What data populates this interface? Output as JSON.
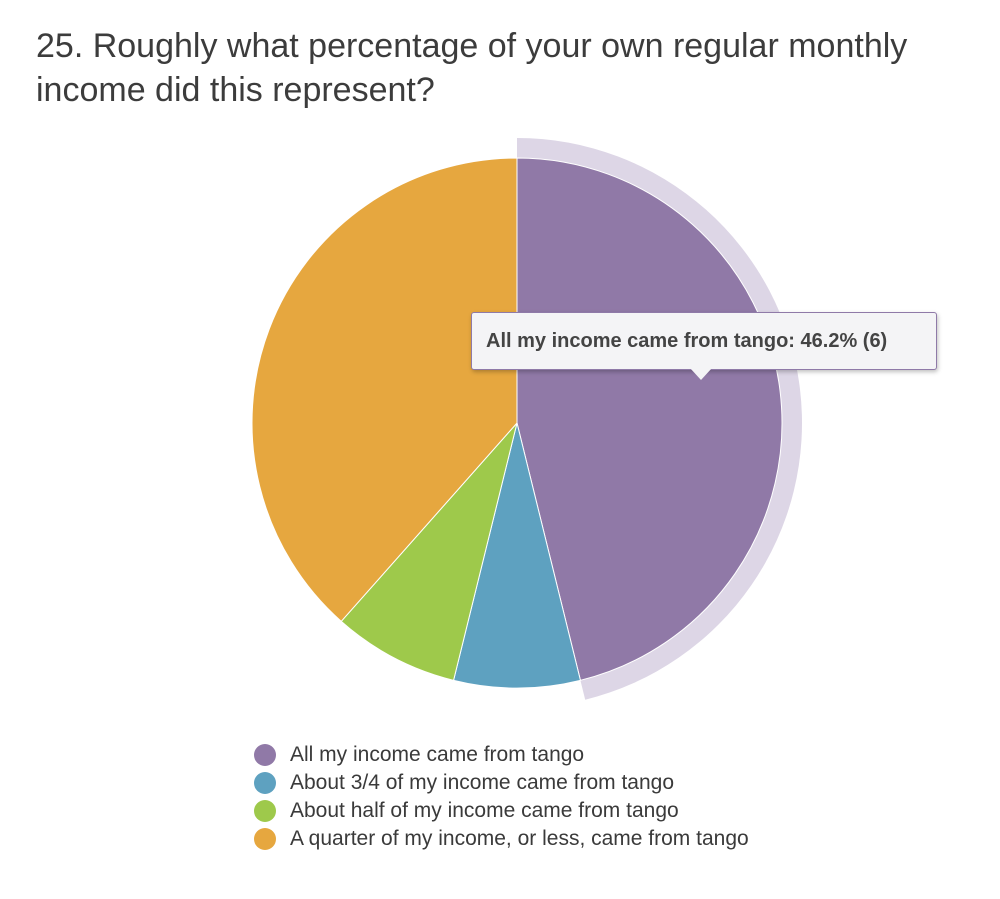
{
  "chart_data": {
    "type": "pie",
    "title": "25. Roughly what percentage of your own regular monthly income did this represent?",
    "categories": [
      "All my income came from tango",
      "About 3/4 of my income came from tango",
      "About half of my income came from tango",
      "A quarter of my income, or less, came from tango"
    ],
    "values": [
      6,
      1,
      1,
      5
    ],
    "percentages": [
      46.2,
      7.7,
      7.7,
      38.5
    ],
    "colors": [
      "#9079a7",
      "#5ea1c0",
      "#9ec94b",
      "#e6a73f"
    ],
    "highlighted": 0,
    "legend_position": "bottom"
  },
  "tooltip": {
    "text": "All my income came from tango: 46.2% (6)"
  }
}
